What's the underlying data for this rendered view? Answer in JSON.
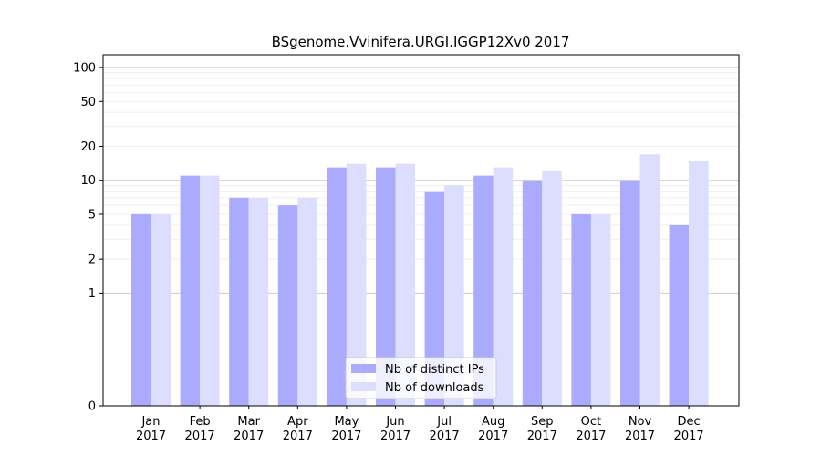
{
  "chart_data": {
    "type": "bar",
    "title": "BSgenome.Vvinifera.URGI.IGGP12Xv0 2017",
    "xlabel": "",
    "ylabel": "",
    "scale": "symlog",
    "ylim": [
      0,
      130
    ],
    "categories": [
      "Jan\n2017",
      "Feb\n2017",
      "Mar\n2017",
      "Apr\n2017",
      "May\n2017",
      "Jun\n2017",
      "Jul\n2017",
      "Aug\n2017",
      "Sep\n2017",
      "Oct\n2017",
      "Nov\n2017",
      "Dec\n2017"
    ],
    "yticks": [
      0,
      1,
      2,
      5,
      10,
      20,
      50,
      100
    ],
    "series": [
      {
        "name": "Nb of distinct IPs",
        "color": "#aaaaff",
        "values": [
          5,
          11,
          7,
          6,
          13,
          13,
          8,
          11,
          10,
          5,
          10,
          4
        ]
      },
      {
        "name": "Nb of downloads",
        "color": "#ddddff",
        "values": [
          5,
          11,
          7,
          7,
          14,
          14,
          9,
          13,
          12,
          5,
          17,
          15
        ]
      }
    ],
    "grid": true,
    "legend_position": "lower center"
  }
}
